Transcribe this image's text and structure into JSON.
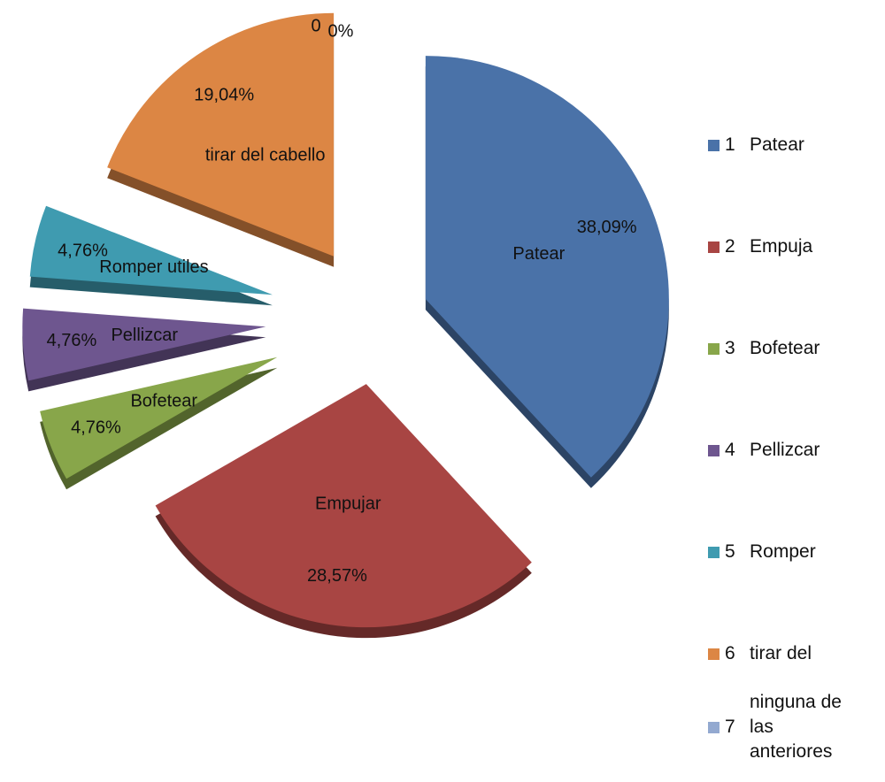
{
  "chart_data": {
    "type": "pie",
    "categories": [
      "Patear",
      "Empujar",
      "Bofetear",
      "Pellizcar",
      "Romper utiles",
      "tirar del cabello",
      "0"
    ],
    "values": [
      38.09,
      28.57,
      4.76,
      4.76,
      4.76,
      19.04,
      0
    ],
    "value_labels": [
      "38,09%",
      "28,57%",
      "4,76%",
      "4,76%",
      "4,76%",
      "19,04%",
      "0%"
    ],
    "colors": [
      "#4a72a8",
      "#a84543",
      "#88a64a",
      "#6e568f",
      "#3f9bb0",
      "#dc8644",
      "#93a9d0"
    ],
    "legend_numbers": [
      "1",
      "2",
      "3",
      "4",
      "5",
      "6",
      "7"
    ],
    "legend_labels": [
      "Patear",
      "Empuja",
      "Bofetear",
      "Pellizcar",
      "Romper",
      "tirar del",
      "ninguna de las anteriores"
    ],
    "legend": "right"
  }
}
